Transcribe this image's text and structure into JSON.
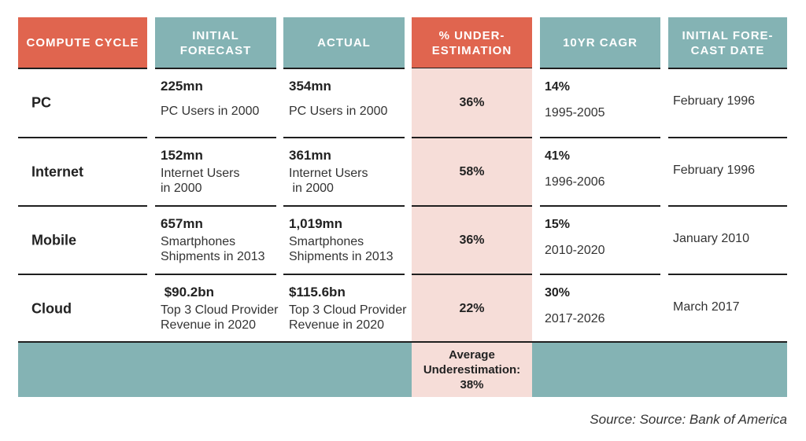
{
  "header": {
    "columns": [
      [
        "COMPUTE CYCLE"
      ],
      [
        "INITIAL",
        "FORECAST"
      ],
      [
        "ACTUAL"
      ],
      [
        "% UNDER-",
        "ESTIMATION"
      ],
      [
        "10YR CAGR"
      ],
      [
        "INITIAL FORE-",
        "CAST DATE"
      ]
    ]
  },
  "table": {
    "rows": [
      {
        "cycle": "PC",
        "initial": {
          "value": "225mn",
          "note": [
            "PC Users in 2000"
          ]
        },
        "actual": {
          "value": "354mn",
          "note": [
            "PC Users in 2000"
          ]
        },
        "underestimation": "36%",
        "cagr": {
          "value": "14%",
          "period": "1995-2005"
        },
        "date": "February 1996"
      },
      {
        "cycle": "Internet",
        "initial": {
          "value": "152mn",
          "note": [
            "Internet Users",
            "in 2000"
          ]
        },
        "actual": {
          "value": "361mn",
          "note": [
            "Internet Users",
            " in 2000"
          ]
        },
        "underestimation": "58%",
        "cagr": {
          "value": "41%",
          "period": "1996-2006"
        },
        "date": "February 1996"
      },
      {
        "cycle": "Mobile",
        "initial": {
          "value": "657mn",
          "note": [
            "Smartphones",
            "Shipments in 2013"
          ]
        },
        "actual": {
          "value": "1,019mn",
          "note": [
            "Smartphones",
            "Shipments in 2013"
          ]
        },
        "underestimation": "36%",
        "cagr": {
          "value": "15%",
          "period": "2010-2020"
        },
        "date": "January 2010"
      },
      {
        "cycle": "Cloud",
        "initial": {
          "value": " $90.2bn",
          "note": [
            "Top 3 Cloud Provider",
            "Revenue in 2020"
          ]
        },
        "actual": {
          "value": "$115.6bn",
          "note": [
            "Top 3 Cloud Provider",
            "Revenue in 2020"
          ]
        },
        "underestimation": "22%",
        "cagr": {
          "value": "30%",
          "period": "2017-2026"
        },
        "date": "March 2017"
      }
    ],
    "footer": [
      "Average",
      "Underestimation:",
      "38%"
    ]
  },
  "source": "Source: Source: Bank of America"
}
